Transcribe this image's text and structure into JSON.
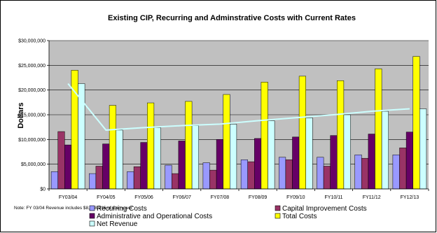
{
  "chart_data": {
    "type": "bar",
    "title": "Existing CIP, Recurring and Adminstrative Costs with Current Rates",
    "ylabel": "Dollars",
    "xlabel": "",
    "ylim": [
      0,
      30000000
    ],
    "yticks": [
      "$0",
      "$5,000,000",
      "$10,000,000",
      "$15,000,000",
      "$20,000,000",
      "$25,000,000",
      "$30,000,000"
    ],
    "grid": true,
    "legend_position": "bottom",
    "categories": [
      "FY03/04",
      "FY04/05",
      "FY05/06",
      "FY06/07",
      "FY07/08",
      "FY08/09",
      "FY09/10",
      "FY10/11",
      "FY11/12",
      "FY12/13"
    ],
    "series": [
      {
        "name": "Recurring Costs",
        "kind": "bar",
        "color": "#9999ff",
        "values": [
          3500000,
          3100000,
          3500000,
          4800000,
          5300000,
          5900000,
          6400000,
          6400000,
          6900000,
          6900000
        ]
      },
      {
        "name": "Capital Improvement Costs",
        "kind": "bar",
        "color": "#993366",
        "values": [
          11600000,
          4600000,
          4500000,
          3100000,
          3800000,
          5500000,
          5900000,
          4600000,
          6200000,
          8300000
        ]
      },
      {
        "name": "Administrative and Operational Costs",
        "kind": "bar",
        "color": "#660066",
        "values": [
          8900000,
          9100000,
          9400000,
          9700000,
          10000000,
          10200000,
          10500000,
          10800000,
          11100000,
          11500000
        ]
      },
      {
        "name": "Total Costs",
        "kind": "bar",
        "color": "#ffff00",
        "values": [
          24000000,
          16900000,
          17400000,
          17700000,
          19100000,
          21600000,
          22800000,
          21900000,
          24300000,
          26800000
        ]
      },
      {
        "name": "Net Revenue",
        "kind": "bar+line",
        "color": "#ccffff",
        "line_color": "#ccffff",
        "values": [
          21300000,
          11900000,
          12400000,
          12800000,
          13100000,
          13800000,
          14400000,
          15000000,
          15700000,
          16200000
        ]
      }
    ],
    "note": "Note: FY 03/04 Revenue includes $8,788,916 of Carryover"
  },
  "colors": {
    "plot_background": "#c0c0c0",
    "gridline": "#000000"
  }
}
